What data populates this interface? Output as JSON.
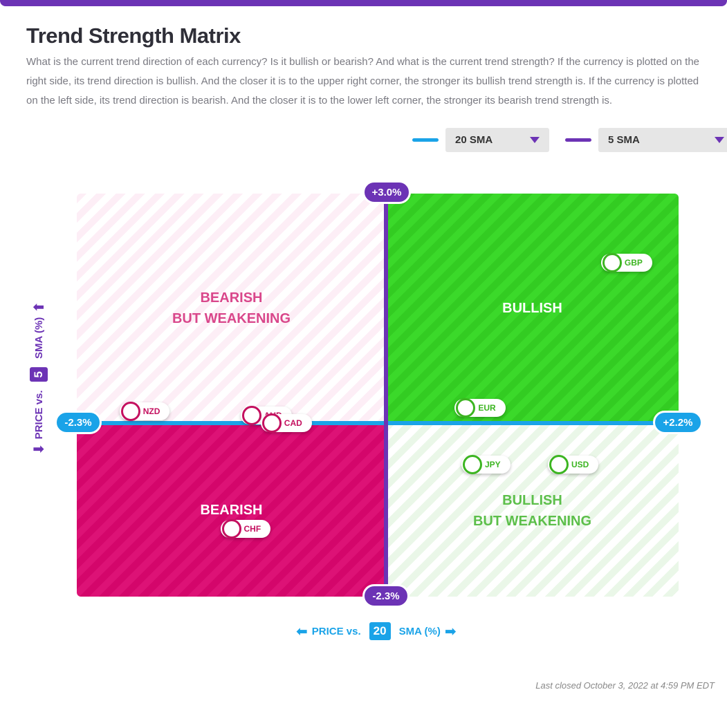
{
  "title": "Trend Strength Matrix",
  "description": "What is the current trend direction of each currency? Is it bullish or bearish? And what is the current trend strength? If the currency is plotted on the right side, its trend direction is bullish. And the closer it is to the upper right corner, the stronger its bullish trend strength is. If the currency is plotted on the left side, its trend direction is bearish. And the closer it is to the lower left corner, the stronger its bearish trend strength is.",
  "controls": {
    "sma_x": {
      "label": "20 SMA",
      "color": "#1aa3e8"
    },
    "sma_y": {
      "label": "5 SMA",
      "color": "#6c33b5"
    }
  },
  "quadrants": {
    "top_left": {
      "line1": "BEARISH",
      "line2": "BUT WEAKENING"
    },
    "top_right": {
      "line1": "BULLISH"
    },
    "bottom_left": {
      "line1": "BEARISH"
    },
    "bottom_right": {
      "line1": "BULLISH",
      "line2": "BUT WEAKENING"
    }
  },
  "axis": {
    "y_top_label": "+3.0%",
    "y_bottom_label": "-2.3%",
    "x_left_label": "-2.3%",
    "x_right_label": "+2.2%",
    "y_title_prefix": "PRICE vs.",
    "y_title_number": "5",
    "y_title_suffix": "SMA (%)",
    "x_title_prefix": "PRICE vs.",
    "x_title_number": "20",
    "x_title_suffix": "SMA (%)",
    "up_arrow": "⬆",
    "down_arrow": "⬇",
    "left_arrow": "⬅",
    "right_arrow": "➡"
  },
  "colors": {
    "bearish": "#c4105f",
    "bullish": "#3cb521",
    "purple": "#6c33b5",
    "blue": "#1aa3e8"
  },
  "footer": "Last closed October 3, 2022 at 4:59 PM EDT",
  "chart_data": {
    "type": "scatter",
    "title": "Trend Strength Matrix",
    "xlabel": "PRICE vs. 20 SMA (%)",
    "ylabel": "PRICE vs. 5 SMA (%)",
    "xlim": [
      -2.3,
      2.2
    ],
    "ylim": [
      -2.3,
      3.0
    ],
    "points": [
      {
        "label": "GBP",
        "x": 1.7,
        "y": 2.1
      },
      {
        "label": "EUR",
        "x": 0.6,
        "y": 0.2
      },
      {
        "label": "NZD",
        "x": -1.9,
        "y": 0.15
      },
      {
        "label": "AUD",
        "x": -1.0,
        "y": 0.1
      },
      {
        "label": "CAD",
        "x": -0.85,
        "y": 0.0
      },
      {
        "label": "JPY",
        "x": 0.65,
        "y": -0.55
      },
      {
        "label": "USD",
        "x": 1.3,
        "y": -0.55
      },
      {
        "label": "CHF",
        "x": -1.15,
        "y": -1.4
      }
    ]
  }
}
